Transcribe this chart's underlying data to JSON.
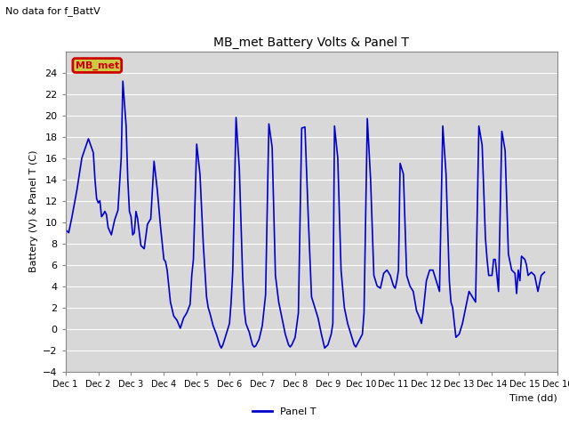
{
  "title": "MB_met Battery Volts & Panel T",
  "top_left_note": "No data for f_BattV",
  "ylabel": "Battery (V) & Panel T (C)",
  "xlabel": "Time (dd)",
  "ylim": [
    -4,
    26
  ],
  "yticks": [
    -4,
    -2,
    0,
    2,
    4,
    6,
    8,
    10,
    12,
    14,
    16,
    18,
    20,
    22,
    24
  ],
  "xlim": [
    1,
    16
  ],
  "xtick_labels": [
    "Dec 1",
    "Dec 2",
    "Dec 3",
    "Dec 4",
    "Dec 5",
    "Dec 6",
    "Dec 7",
    "Dec 8",
    "Dec 9",
    "Dec 10",
    "Dec 11",
    "Dec 12",
    "Dec 13",
    "Dec 14",
    "Dec 15",
    "Dec 16"
  ],
  "line_color": "#0000cc",
  "line_label": "Panel T",
  "bg_color": "#d8d8d8",
  "legend_label_color": "#cc0000",
  "legend_box_facecolor": "#cccc44",
  "legend_box_edgecolor": "#cc0000",
  "legend_text": "MB_met",
  "panel_t_data": [
    [
      1.0,
      9.3
    ],
    [
      1.1,
      9.0
    ],
    [
      1.2,
      10.5
    ],
    [
      1.35,
      13.0
    ],
    [
      1.5,
      16.0
    ],
    [
      1.7,
      17.8
    ],
    [
      1.85,
      16.5
    ],
    [
      1.9,
      14.0
    ],
    [
      1.95,
      12.2
    ],
    [
      2.0,
      11.8
    ],
    [
      2.05,
      12.0
    ],
    [
      2.1,
      10.5
    ],
    [
      2.15,
      10.7
    ],
    [
      2.2,
      11.0
    ],
    [
      2.25,
      10.7
    ],
    [
      2.3,
      9.5
    ],
    [
      2.4,
      8.8
    ],
    [
      2.5,
      10.2
    ],
    [
      2.6,
      11.1
    ],
    [
      2.7,
      16.0
    ],
    [
      2.75,
      23.2
    ],
    [
      2.85,
      19.0
    ],
    [
      2.9,
      14.0
    ],
    [
      2.95,
      11.0
    ],
    [
      3.0,
      10.5
    ],
    [
      3.05,
      8.8
    ],
    [
      3.1,
      9.0
    ],
    [
      3.15,
      11.0
    ],
    [
      3.2,
      10.3
    ],
    [
      3.3,
      7.8
    ],
    [
      3.4,
      7.5
    ],
    [
      3.5,
      9.8
    ],
    [
      3.6,
      10.3
    ],
    [
      3.7,
      15.7
    ],
    [
      3.8,
      13.0
    ],
    [
      3.9,
      9.5
    ],
    [
      4.0,
      6.5
    ],
    [
      4.05,
      6.3
    ],
    [
      4.1,
      5.5
    ],
    [
      4.2,
      2.5
    ],
    [
      4.3,
      1.2
    ],
    [
      4.4,
      0.8
    ],
    [
      4.5,
      0.05
    ],
    [
      4.6,
      1.0
    ],
    [
      4.7,
      1.5
    ],
    [
      4.8,
      2.3
    ],
    [
      4.85,
      5.0
    ],
    [
      4.9,
      6.5
    ],
    [
      5.0,
      17.3
    ],
    [
      5.1,
      14.5
    ],
    [
      5.2,
      8.0
    ],
    [
      5.3,
      3.0
    ],
    [
      5.35,
      2.0
    ],
    [
      5.4,
      1.5
    ],
    [
      5.5,
      0.3
    ],
    [
      5.6,
      -0.5
    ],
    [
      5.65,
      -1.0
    ],
    [
      5.7,
      -1.5
    ],
    [
      5.75,
      -1.8
    ],
    [
      5.8,
      -1.5
    ],
    [
      5.9,
      -0.5
    ],
    [
      6.0,
      0.5
    ],
    [
      6.05,
      2.5
    ],
    [
      6.1,
      5.5
    ],
    [
      6.2,
      19.8
    ],
    [
      6.3,
      15.0
    ],
    [
      6.4,
      5.0
    ],
    [
      6.45,
      1.8
    ],
    [
      6.5,
      0.5
    ],
    [
      6.6,
      -0.3
    ],
    [
      6.7,
      -1.5
    ],
    [
      6.75,
      -1.7
    ],
    [
      6.8,
      -1.6
    ],
    [
      6.9,
      -1.0
    ],
    [
      7.0,
      0.3
    ],
    [
      7.1,
      3.2
    ],
    [
      7.2,
      19.2
    ],
    [
      7.3,
      17.0
    ],
    [
      7.4,
      5.0
    ],
    [
      7.5,
      2.5
    ],
    [
      7.6,
      1.0
    ],
    [
      7.7,
      -0.5
    ],
    [
      7.8,
      -1.5
    ],
    [
      7.85,
      -1.7
    ],
    [
      7.9,
      -1.5
    ],
    [
      8.0,
      -0.8
    ],
    [
      8.1,
      1.5
    ],
    [
      8.2,
      18.8
    ],
    [
      8.3,
      18.9
    ],
    [
      8.4,
      10.5
    ],
    [
      8.5,
      3.0
    ],
    [
      8.6,
      2.0
    ],
    [
      8.7,
      1.0
    ],
    [
      8.8,
      -0.5
    ],
    [
      8.9,
      -1.8
    ],
    [
      9.0,
      -1.5
    ],
    [
      9.05,
      -1.0
    ],
    [
      9.1,
      -0.5
    ],
    [
      9.15,
      0.5
    ],
    [
      9.2,
      19.0
    ],
    [
      9.3,
      16.0
    ],
    [
      9.4,
      5.5
    ],
    [
      9.5,
      2.0
    ],
    [
      9.6,
      0.5
    ],
    [
      9.7,
      -0.5
    ],
    [
      9.75,
      -1.0
    ],
    [
      9.8,
      -1.5
    ],
    [
      9.85,
      -1.7
    ],
    [
      10.0,
      -0.8
    ],
    [
      10.05,
      -0.5
    ],
    [
      10.1,
      1.5
    ],
    [
      10.2,
      19.7
    ],
    [
      10.3,
      14.0
    ],
    [
      10.4,
      5.0
    ],
    [
      10.5,
      4.0
    ],
    [
      10.6,
      3.8
    ],
    [
      10.7,
      5.2
    ],
    [
      10.8,
      5.5
    ],
    [
      10.9,
      5.0
    ],
    [
      11.0,
      4.0
    ],
    [
      11.05,
      3.8
    ],
    [
      11.1,
      4.5
    ],
    [
      11.15,
      5.5
    ],
    [
      11.2,
      15.5
    ],
    [
      11.3,
      14.5
    ],
    [
      11.4,
      5.0
    ],
    [
      11.5,
      4.0
    ],
    [
      11.6,
      3.5
    ],
    [
      11.7,
      1.7
    ],
    [
      11.8,
      1.0
    ],
    [
      11.85,
      0.5
    ],
    [
      11.9,
      1.5
    ],
    [
      12.0,
      4.5
    ],
    [
      12.05,
      5.0
    ],
    [
      12.1,
      5.5
    ],
    [
      12.15,
      5.5
    ],
    [
      12.2,
      5.5
    ],
    [
      12.3,
      4.5
    ],
    [
      12.4,
      3.5
    ],
    [
      12.5,
      19.0
    ],
    [
      12.6,
      14.5
    ],
    [
      12.7,
      4.5
    ],
    [
      12.75,
      2.5
    ],
    [
      12.8,
      2.0
    ],
    [
      12.9,
      -0.8
    ],
    [
      13.0,
      -0.5
    ],
    [
      13.1,
      0.5
    ],
    [
      13.2,
      2.0
    ],
    [
      13.3,
      3.5
    ],
    [
      13.4,
      3.0
    ],
    [
      13.5,
      2.5
    ],
    [
      13.6,
      19.0
    ],
    [
      13.7,
      17.2
    ],
    [
      13.8,
      8.5
    ],
    [
      13.85,
      6.5
    ],
    [
      13.9,
      5.0
    ],
    [
      14.0,
      5.0
    ],
    [
      14.05,
      6.5
    ],
    [
      14.1,
      6.5
    ],
    [
      14.15,
      5.0
    ],
    [
      14.2,
      3.5
    ],
    [
      14.3,
      18.5
    ],
    [
      14.4,
      16.7
    ],
    [
      14.5,
      7.0
    ],
    [
      14.6,
      5.5
    ],
    [
      14.7,
      5.2
    ],
    [
      14.75,
      3.3
    ],
    [
      14.8,
      5.5
    ],
    [
      14.85,
      4.5
    ],
    [
      14.9,
      6.8
    ],
    [
      15.0,
      6.5
    ],
    [
      15.05,
      6.0
    ],
    [
      15.1,
      5.0
    ],
    [
      15.2,
      5.3
    ],
    [
      15.3,
      5.0
    ],
    [
      15.4,
      3.5
    ],
    [
      15.5,
      5.0
    ],
    [
      15.6,
      5.3
    ]
  ]
}
